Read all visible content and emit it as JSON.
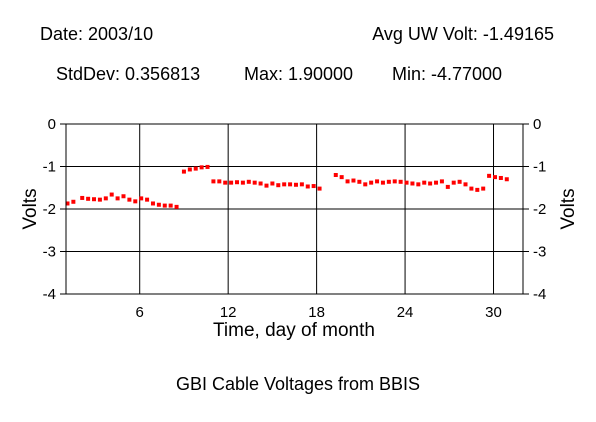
{
  "header": {
    "date": "Date: 2003/10",
    "avg_uw_volt": "Avg UW Volt: -1.49165",
    "std_dev": "StdDev: 0.356813",
    "max": "Max: 1.90000",
    "min": "Min: -4.77000"
  },
  "caption": "GBI Cable Voltages from BBIS",
  "colors": {
    "points": "#ff0000",
    "axes": "#000000",
    "grid": "#000000"
  },
  "chart_data": {
    "type": "scatter",
    "title": "GBI Cable Voltages from BBIS",
    "xlabel": "Time, day of month",
    "ylabel": "Volts",
    "xlim": [
      1,
      32
    ],
    "ylim": [
      -4,
      0
    ],
    "xticks": [
      6,
      12,
      18,
      24,
      30
    ],
    "yticks": [
      0,
      -1,
      -2,
      -3,
      -4
    ],
    "xtick_labels": [
      "6",
      "12",
      "18",
      "24",
      "30"
    ],
    "ytick_labels": [
      "0",
      "-1",
      "-2",
      "-3",
      "-4"
    ],
    "grid": true,
    "series": [
      {
        "color": "#ff0000",
        "x": [
          1.1,
          1.5,
          2.1,
          2.5,
          2.9,
          3.3,
          3.7,
          4.1,
          4.5,
          4.9,
          5.3,
          5.7,
          6.1,
          6.5,
          6.9,
          7.3,
          7.7,
          8.1,
          8.5,
          9.0,
          9.4,
          9.8,
          10.2,
          10.6,
          11.0,
          11.4,
          11.8,
          12.2,
          12.6,
          13.0,
          13.4,
          13.8,
          14.2,
          14.6,
          15.0,
          15.4,
          15.8,
          16.2,
          16.6,
          17.0,
          17.4,
          17.8,
          18.2,
          19.3,
          19.7,
          20.1,
          20.5,
          20.9,
          21.3,
          21.7,
          22.1,
          22.5,
          22.9,
          23.3,
          23.7,
          24.1,
          24.5,
          24.9,
          25.3,
          25.7,
          26.1,
          26.5,
          26.9,
          27.3,
          27.7,
          28.1,
          28.5,
          28.9,
          29.3,
          29.7,
          30.1,
          30.5,
          30.9
        ],
        "y": [
          -1.87,
          -1.83,
          -1.74,
          -1.76,
          -1.77,
          -1.78,
          -1.75,
          -1.66,
          -1.75,
          -1.7,
          -1.78,
          -1.82,
          -1.75,
          -1.78,
          -1.87,
          -1.9,
          -1.92,
          -1.92,
          -1.95,
          -1.12,
          -1.07,
          -1.05,
          -1.02,
          -1.01,
          -1.35,
          -1.35,
          -1.38,
          -1.38,
          -1.37,
          -1.38,
          -1.36,
          -1.38,
          -1.4,
          -1.45,
          -1.4,
          -1.44,
          -1.42,
          -1.42,
          -1.43,
          -1.42,
          -1.47,
          -1.46,
          -1.52,
          -1.2,
          -1.25,
          -1.35,
          -1.33,
          -1.36,
          -1.42,
          -1.38,
          -1.35,
          -1.38,
          -1.36,
          -1.35,
          -1.36,
          -1.38,
          -1.4,
          -1.42,
          -1.38,
          -1.4,
          -1.38,
          -1.35,
          -1.48,
          -1.38,
          -1.36,
          -1.42,
          -1.52,
          -1.55,
          -1.52,
          -1.22,
          -1.25,
          -1.27,
          -1.3
        ]
      }
    ]
  }
}
